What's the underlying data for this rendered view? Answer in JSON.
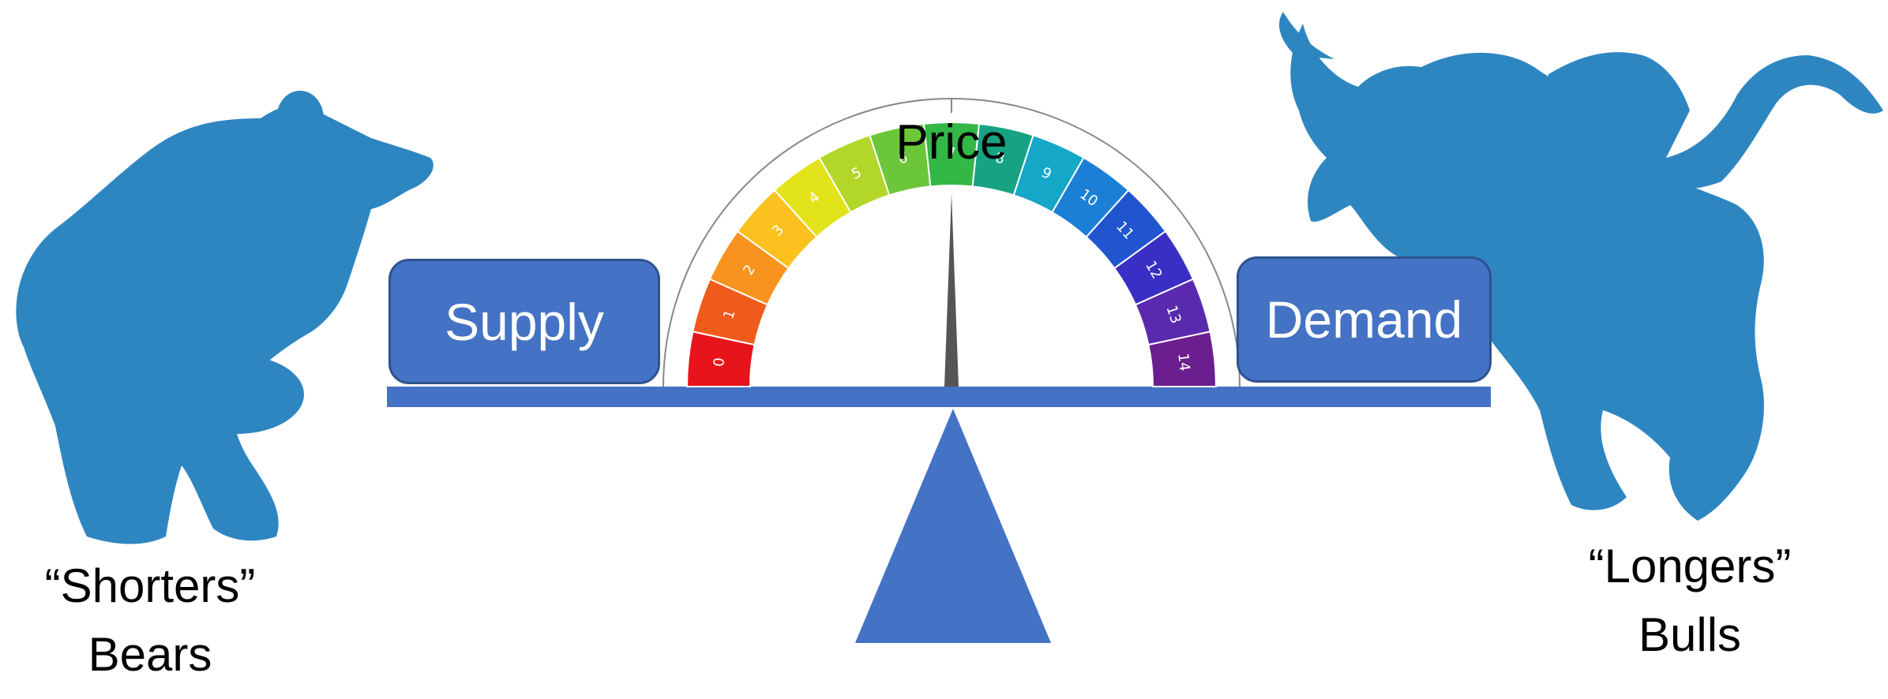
{
  "diagram": {
    "price_label": "Price",
    "supply_label": "Supply",
    "demand_label": "Demand",
    "bears": {
      "line1": "“Shorters”",
      "line2": "Bears"
    },
    "bulls": {
      "line1": "“Longers”",
      "line2": "Bulls"
    },
    "gauge": {
      "ticks": [
        "0",
        "1",
        "2",
        "3",
        "4",
        "5",
        "6",
        "7",
        "8",
        "9",
        "10",
        "11",
        "12",
        "13",
        "14"
      ],
      "colors": [
        "#e8141c",
        "#f05a1a",
        "#f7931e",
        "#fcc11e",
        "#e3e31c",
        "#b2d72a",
        "#6cc63a",
        "#33b747",
        "#16a383",
        "#15a7c7",
        "#1b7fd6",
        "#2155cf",
        "#3a2fc4",
        "#5a2aae",
        "#6b1f8f"
      ],
      "pointer_value": 7
    },
    "colors": {
      "accent": "#4472c4",
      "animal": "#2e86c1",
      "pointer": "#555555"
    }
  }
}
